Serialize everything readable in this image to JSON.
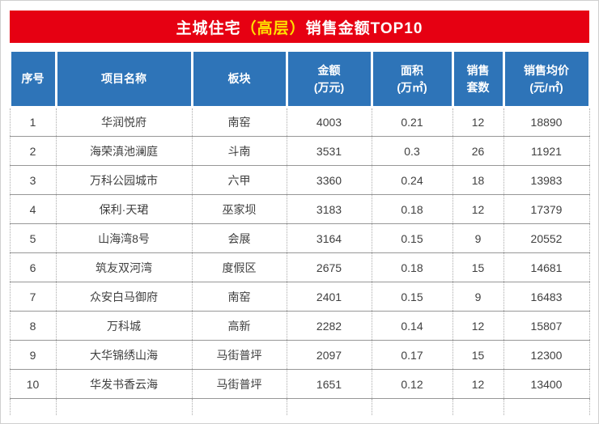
{
  "chart_data": {
    "type": "table",
    "title": "主城住宅（高层）销售金额TOP10",
    "title_parts": {
      "prefix": "主城住宅",
      "highlight": "（高层）",
      "suffix": "销售金额TOP10"
    },
    "columns": [
      {
        "key": "index",
        "lines": [
          "序号"
        ]
      },
      {
        "key": "project",
        "lines": [
          "项目名称"
        ]
      },
      {
        "key": "district",
        "lines": [
          "板块"
        ]
      },
      {
        "key": "amount",
        "lines": [
          "金额",
          "(万元)"
        ]
      },
      {
        "key": "area",
        "lines": [
          "面积",
          "(万㎡)"
        ]
      },
      {
        "key": "units",
        "lines": [
          "销售",
          "套数"
        ]
      },
      {
        "key": "price",
        "lines": [
          "销售均价",
          "(元/㎡)"
        ]
      }
    ],
    "rows": [
      [
        "1",
        "华润悦府",
        "南窑",
        "4003",
        "0.21",
        "12",
        "18890"
      ],
      [
        "2",
        "海荣滇池澜庭",
        "斗南",
        "3531",
        "0.3",
        "26",
        "11921"
      ],
      [
        "3",
        "万科公园城市",
        "六甲",
        "3360",
        "0.24",
        "18",
        "13983"
      ],
      [
        "4",
        "保利·天珺",
        "巫家坝",
        "3183",
        "0.18",
        "12",
        "17379"
      ],
      [
        "5",
        "山海湾8号",
        "会展",
        "3164",
        "0.15",
        "9",
        "20552"
      ],
      [
        "6",
        "筑友双河湾",
        "度假区",
        "2675",
        "0.18",
        "15",
        "14681"
      ],
      [
        "7",
        "众安白马御府",
        "南窑",
        "2401",
        "0.15",
        "9",
        "16483"
      ],
      [
        "8",
        "万科城",
        "高新",
        "2282",
        "0.14",
        "12",
        "15807"
      ],
      [
        "9",
        "大华锦绣山海",
        "马街普坪",
        "2097",
        "0.17",
        "15",
        "12300"
      ],
      [
        "10",
        "华发书香云海",
        "马街普坪",
        "1651",
        "0.12",
        "12",
        "13400"
      ]
    ]
  },
  "colors": {
    "banner_bg": "#e60012",
    "banner_text": "#ffffff",
    "banner_highlight": "#ffe100",
    "header_bg": "#2e74b8",
    "header_text": "#ffffff",
    "body_text": "#404040"
  }
}
